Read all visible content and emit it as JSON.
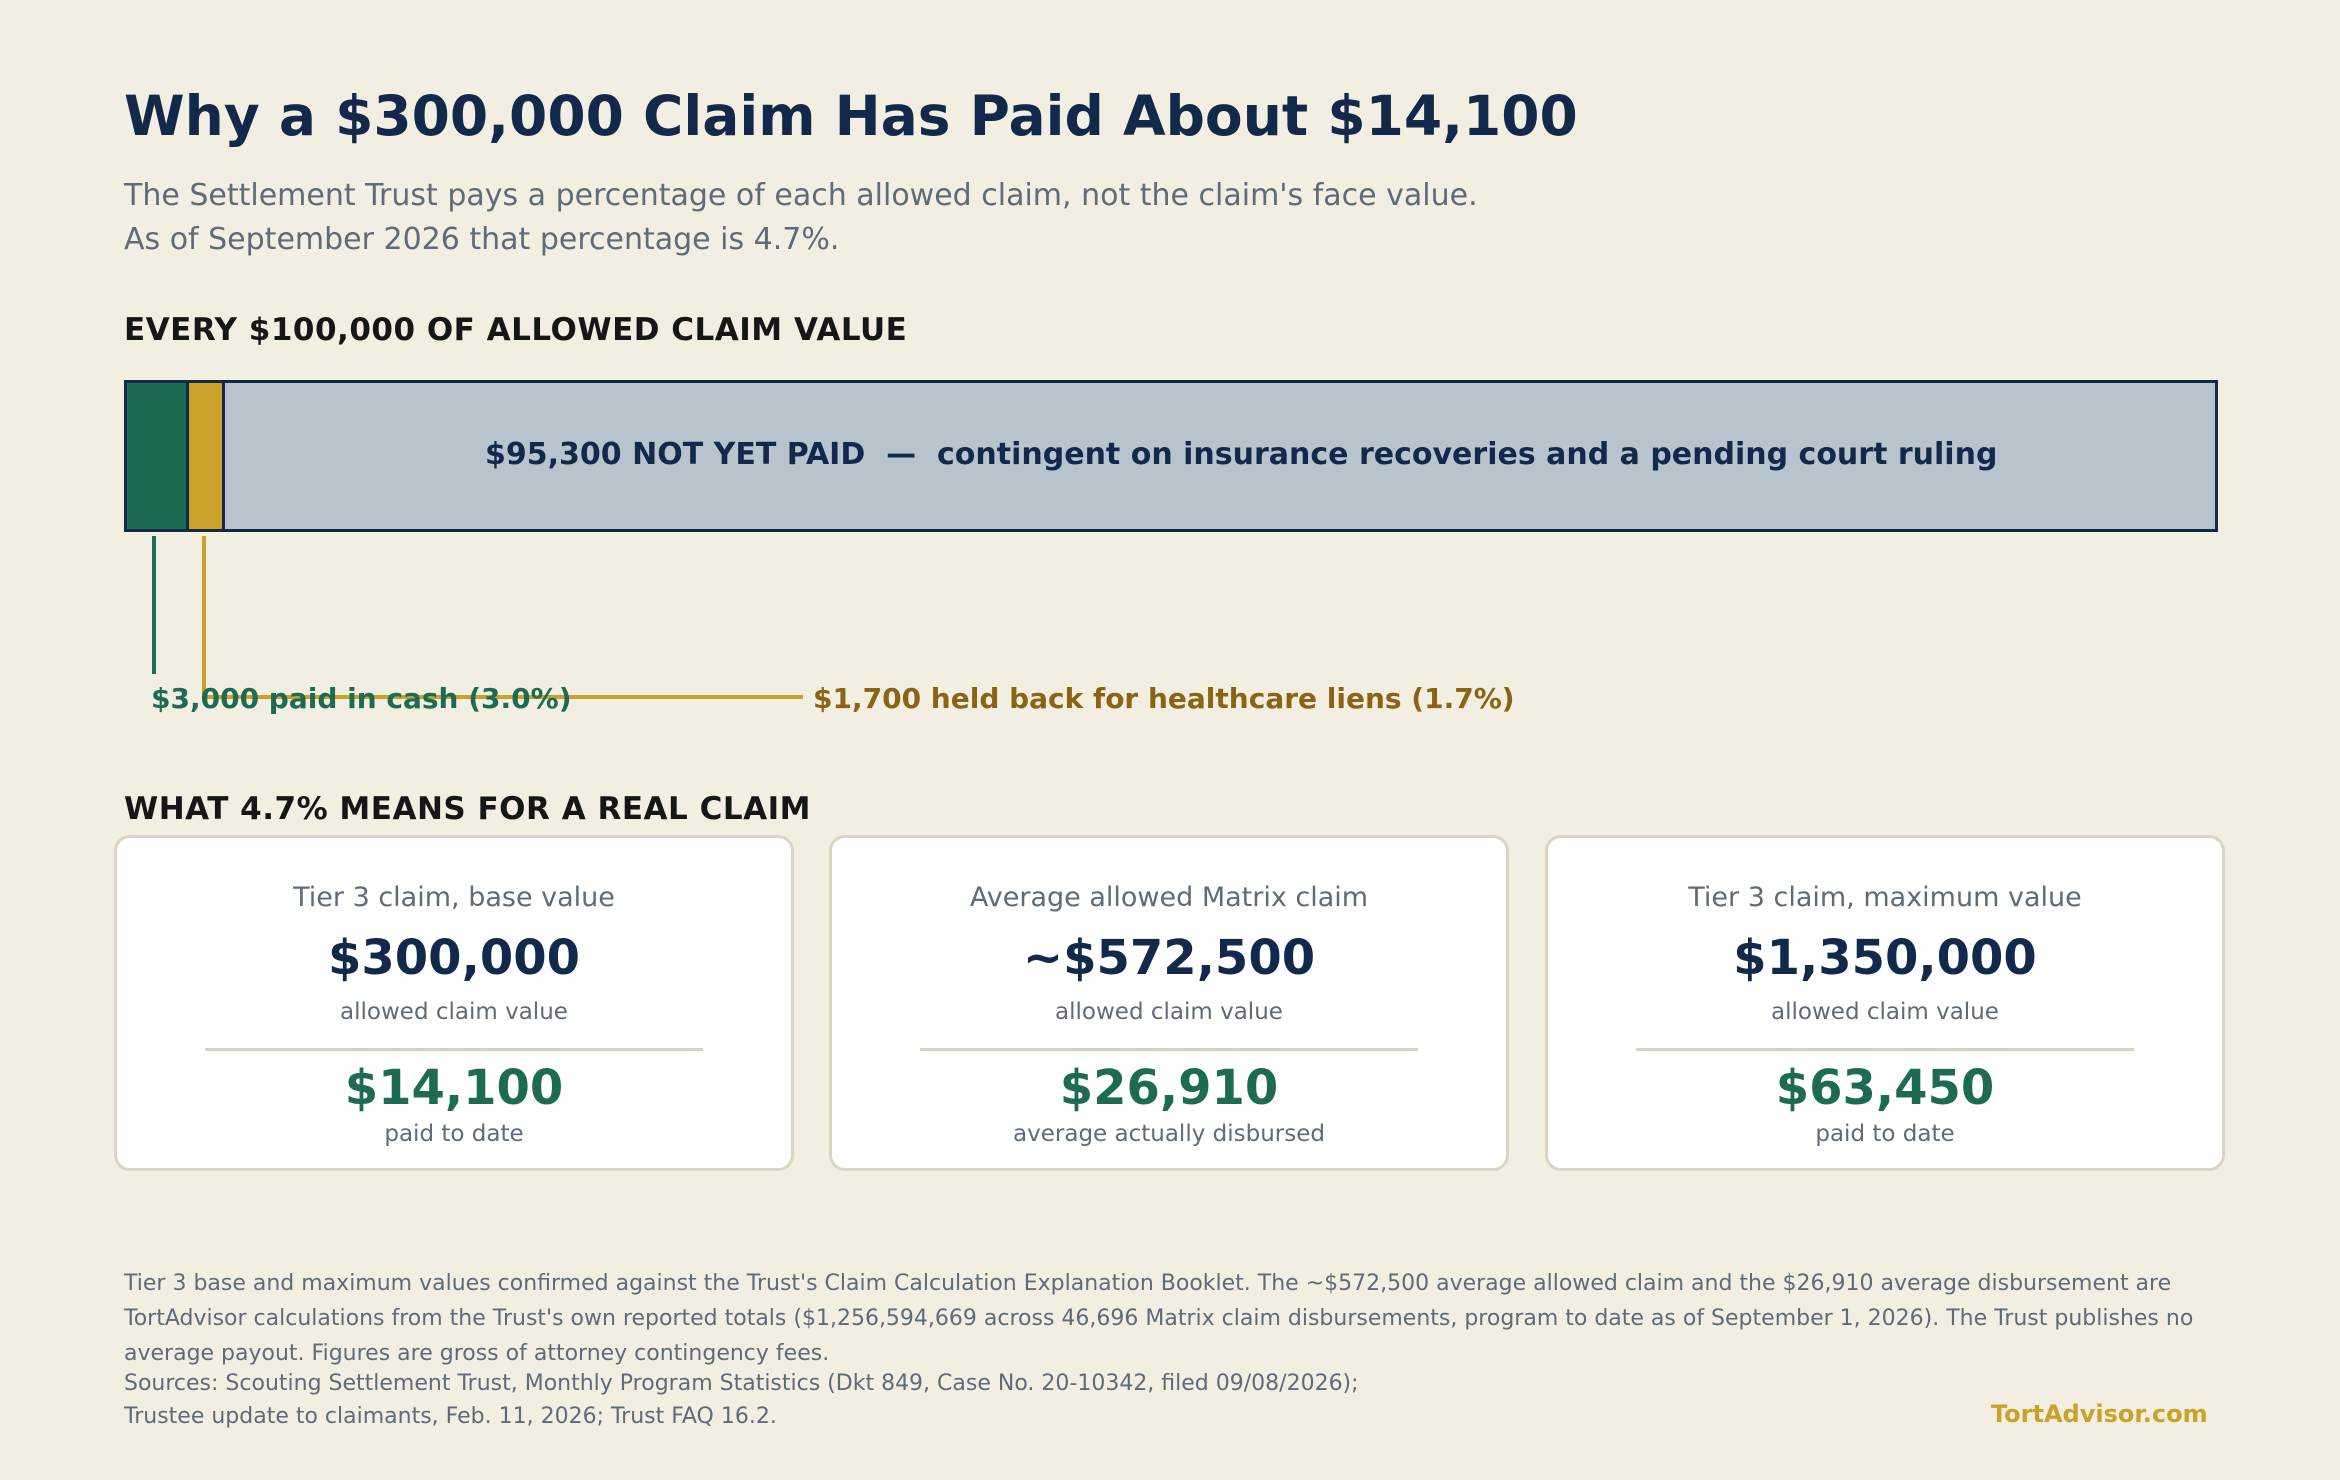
{
  "header": {
    "title": "Why a $300,000 Claim Has Paid About $14,100",
    "subtitle_line1": "The Settlement Trust pays a percentage of each allowed claim, not the claim's face value.",
    "subtitle_line2": "As of September 2026 that percentage is 4.7%."
  },
  "section1_heading": "EVERY $100,000 OF ALLOWED CLAIM VALUE",
  "chart_data": {
    "type": "bar",
    "title": "EVERY $100,000 OF ALLOWED CLAIM VALUE",
    "orientation": "horizontal",
    "stacked": true,
    "total": 100000,
    "unit": "$",
    "series": [
      {
        "name": "paid in cash",
        "value": 3000,
        "percent": 3.0,
        "color": "#1e6b53",
        "label": "$3,000 paid in cash (3.0%)"
      },
      {
        "name": "held back for healthcare liens",
        "value": 1700,
        "percent": 1.7,
        "color": "#c9a227",
        "label": "$1,700 held back for healthcare liens (1.7%)"
      },
      {
        "name": "not yet paid",
        "value": 95300,
        "percent": 95.3,
        "color": "#b7c4ce",
        "label": "$95,300 NOT YET PAID  —  contingent on insurance recoveries and a pending court ruling"
      }
    ]
  },
  "section2_heading": "WHAT 4.7% MEANS FOR A REAL CLAIM",
  "cards": [
    {
      "label": "Tier 3 claim, base value",
      "claim": "$300,000",
      "claim_sub": "allowed claim value",
      "paid": "$14,100",
      "paid_sub": "paid to date"
    },
    {
      "label": "Average allowed Matrix claim",
      "claim": "~$572,500",
      "claim_sub": "allowed claim value",
      "paid": "$26,910",
      "paid_sub": "average actually disbursed"
    },
    {
      "label": "Tier 3 claim, maximum value",
      "claim": "$1,350,000",
      "claim_sub": "allowed claim value",
      "paid": "$63,450",
      "paid_sub": "paid to date"
    }
  ],
  "footer": {
    "notes": "Tier 3 base and maximum values confirmed against the Trust's Claim Calculation Explanation Booklet. The ~$572,500 average allowed claim and the $26,910 average disbursement are TortAdvisor calculations from the Trust's own reported totals ($1,256,594,669 across 46,696 Matrix claim disbursements, program to date as of September 1, 2026). The Trust publishes no average payout. Figures are gross of attorney contingency fees.",
    "sources_line1": "Sources: Scouting Settlement Trust, Monthly Program Statistics (Dkt 849, Case No. 20-10342, filed 09/08/2026);",
    "sources_line2": "Trustee update to claimants, Feb. 11, 2026; Trust FAQ 16.2.",
    "brand": "TortAdvisor.com"
  },
  "colors": {
    "background": "#f3eee2",
    "navy": "#13294b",
    "green": "#1e6b53",
    "gold": "#c9a227",
    "slate": "#b7c4ce"
  }
}
